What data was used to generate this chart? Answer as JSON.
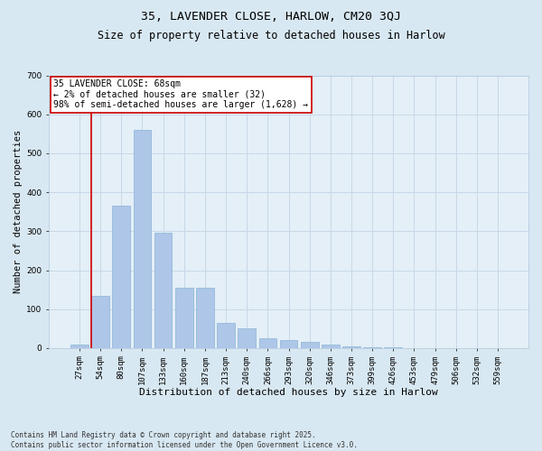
{
  "title1": "35, LAVENDER CLOSE, HARLOW, CM20 3QJ",
  "title2": "Size of property relative to detached houses in Harlow",
  "xlabel": "Distribution of detached houses by size in Harlow",
  "ylabel": "Number of detached properties",
  "categories": [
    "27sqm",
    "54sqm",
    "80sqm",
    "107sqm",
    "133sqm",
    "160sqm",
    "187sqm",
    "213sqm",
    "240sqm",
    "266sqm",
    "293sqm",
    "320sqm",
    "346sqm",
    "373sqm",
    "399sqm",
    "426sqm",
    "453sqm",
    "479sqm",
    "506sqm",
    "532sqm",
    "559sqm"
  ],
  "values": [
    10,
    135,
    365,
    560,
    295,
    155,
    155,
    65,
    50,
    25,
    20,
    15,
    8,
    4,
    3,
    2,
    1,
    1,
    0,
    0,
    0
  ],
  "bar_color": "#aec6e8",
  "bar_edge_color": "#8ab4d4",
  "vline_color": "#cc0000",
  "vline_x_index": 1,
  "annotation_text": "35 LAVENDER CLOSE: 68sqm\n← 2% of detached houses are smaller (32)\n98% of semi-detached houses are larger (1,628) →",
  "annotation_box_color": "#ffffff",
  "annotation_box_edge": "#cc0000",
  "ylim": [
    0,
    700
  ],
  "yticks": [
    0,
    100,
    200,
    300,
    400,
    500,
    600,
    700
  ],
  "grid_color": "#c8d8e8",
  "background_color": "#d8e8f2",
  "plot_bg_color": "#e4eff7",
  "footnote": "Contains HM Land Registry data © Crown copyright and database right 2025.\nContains public sector information licensed under the Open Government Licence v3.0.",
  "title1_fontsize": 9.5,
  "title2_fontsize": 8.5,
  "xlabel_fontsize": 8,
  "ylabel_fontsize": 7.5,
  "tick_fontsize": 6.5,
  "annotation_fontsize": 7,
  "footnote_fontsize": 5.5
}
